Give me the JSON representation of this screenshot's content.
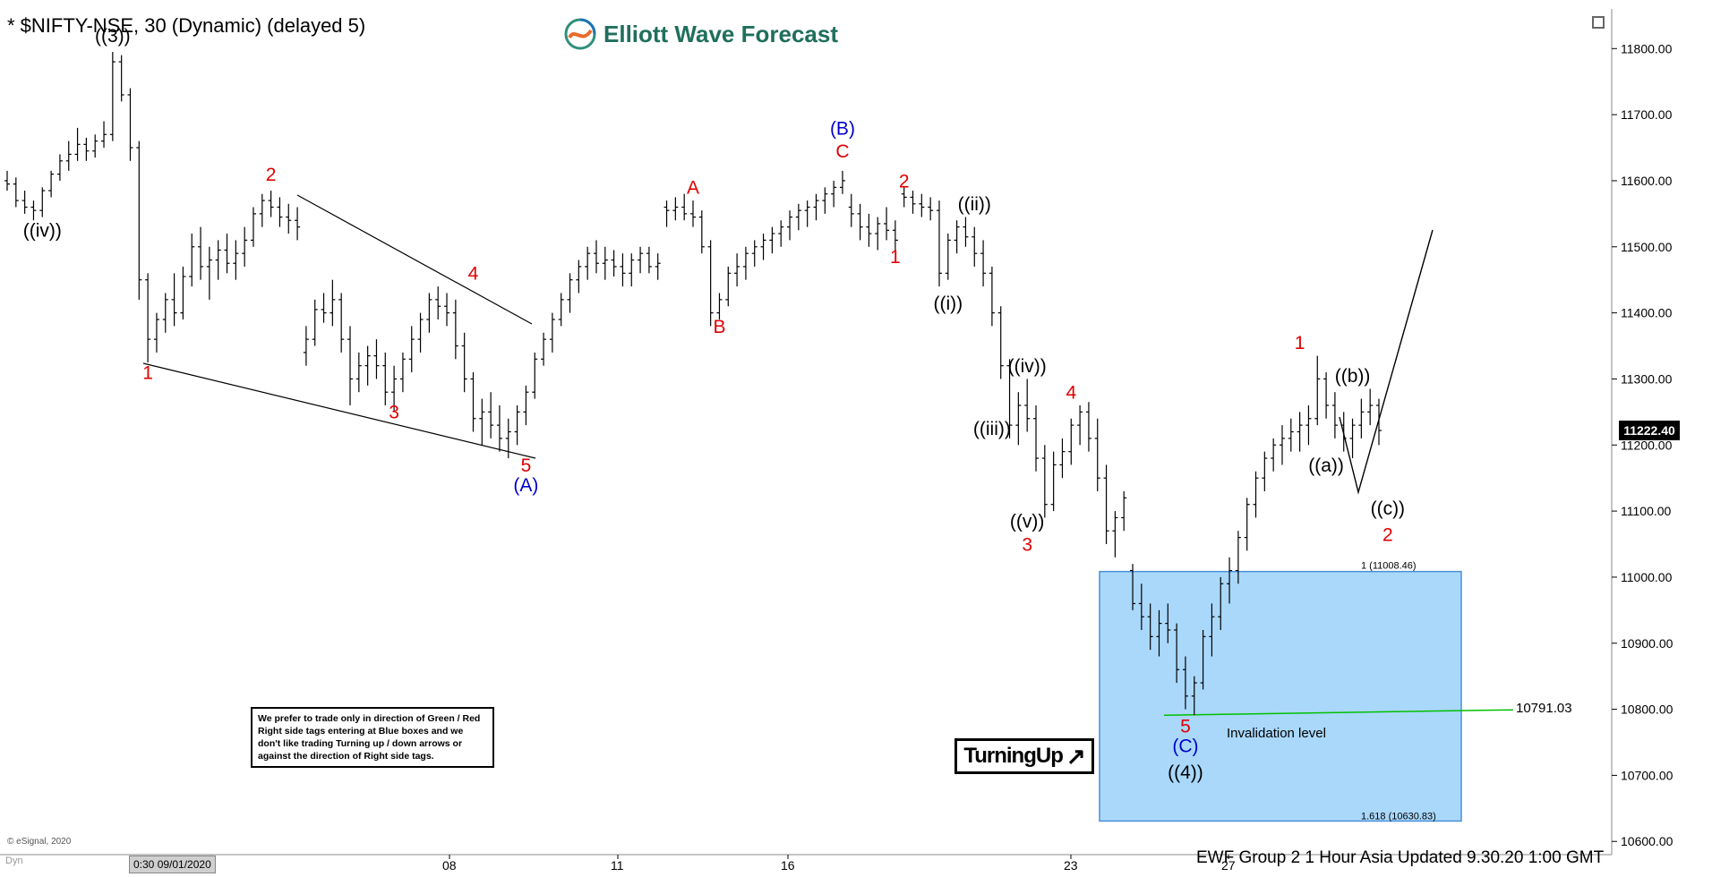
{
  "header": {
    "symbol_title": "* $NIFTY-NSE, 30 (Dynamic) (delayed 5)",
    "brand": "Elliott Wave Forecast"
  },
  "note_box": {
    "text": "We prefer to trade only in direction of Green / Red Right side tags entering at Blue boxes and we don't like trading Turning up / down arrows or against the direction of Right side tags."
  },
  "turning_up": {
    "label": "TurningUp",
    "icon": "up-right-arrow-icon"
  },
  "footer": {
    "text": "EWF Group 2   1 Hour Asia Updated 9.30.20 1:00 GMT",
    "copyright": "© eSignal, 2020",
    "dyn_label": "Dyn",
    "date_flag": "0:30 09/01/2020"
  },
  "chart_data": {
    "type": "ohlc",
    "ylim": [
      10580,
      11860
    ],
    "y_ticks": [
      "11800.00",
      "11700.00",
      "11600.00",
      "11500.00",
      "11400.00",
      "11300.00",
      "11200.00",
      "11100.00",
      "11000.00",
      "10900.00",
      "10800.00",
      "10700.00",
      "10600.00"
    ],
    "x_tick_labels": [
      "08",
      "11",
      "16",
      "23",
      "27"
    ],
    "last_price": "11222.40",
    "colors": {
      "bars": "#000000",
      "red_label": "#e00000",
      "blue_label": "#0000cc",
      "box_fill": "#a9d8fb",
      "box_stroke": "#4a90d9",
      "invalidation": "#00c000"
    },
    "blue_box": {
      "top_label": "1 (11008.46)",
      "bottom_label": "1.618 (10630.83)",
      "top": 11008.46,
      "bottom": 10630.83
    },
    "invalidation": {
      "value": 10791.03,
      "label": "10791.03",
      "text": "Invalidation level"
    },
    "wave_labels": [
      {
        "text": "((3))",
        "color": "black",
        "price": 11810,
        "bar": 12
      },
      {
        "text": "((iv))",
        "color": "black",
        "price": 11515,
        "bar": 4
      },
      {
        "text": "1",
        "color": "red",
        "price": 11300,
        "bar": 16
      },
      {
        "text": "2",
        "color": "red",
        "price": 11600,
        "bar": 30
      },
      {
        "text": "3",
        "color": "red",
        "price": 11240,
        "bar": 44
      },
      {
        "text": "4",
        "color": "red",
        "price": 11450,
        "bar": 53
      },
      {
        "text": "5",
        "color": "red",
        "price": 11160,
        "bar": 59
      },
      {
        "text": "(A)",
        "color": "blue",
        "price": 11130,
        "bar": 59
      },
      {
        "text": "A",
        "color": "red",
        "price": 11580,
        "bar": 78
      },
      {
        "text": "B",
        "color": "red",
        "price": 11370,
        "bar": 81
      },
      {
        "text": "(B)",
        "color": "blue",
        "price": 11670,
        "bar": 95
      },
      {
        "text": "C",
        "color": "red",
        "price": 11635,
        "bar": 95
      },
      {
        "text": "2",
        "color": "red",
        "price": 11590,
        "bar": 102
      },
      {
        "text": "1",
        "color": "red",
        "price": 11475,
        "bar": 101
      },
      {
        "text": "((ii))",
        "color": "black",
        "price": 11555,
        "bar": 110
      },
      {
        "text": "((i))",
        "color": "black",
        "price": 11405,
        "bar": 107
      },
      {
        "text": "((iv))",
        "color": "black",
        "price": 11310,
        "bar": 116
      },
      {
        "text": "((iii))",
        "color": "black",
        "price": 11215,
        "bar": 112
      },
      {
        "text": "4",
        "color": "red",
        "price": 11270,
        "bar": 121
      },
      {
        "text": "((v))",
        "color": "black",
        "price": 11075,
        "bar": 116
      },
      {
        "text": "3",
        "color": "red",
        "price": 11040,
        "bar": 116
      },
      {
        "text": "5",
        "color": "red",
        "price": 10765,
        "bar": 134
      },
      {
        "text": "(C)",
        "color": "blue",
        "price": 10735,
        "bar": 134
      },
      {
        "text": "((4))",
        "color": "black",
        "price": 10695,
        "bar": 134
      },
      {
        "text": "1",
        "color": "red",
        "price": 11345,
        "bar": 147
      },
      {
        "text": "((b))",
        "color": "black",
        "price": 11295,
        "bar": 153
      },
      {
        "text": "((a))",
        "color": "black",
        "price": 11160,
        "bar": 150
      },
      {
        "text": "((c))",
        "color": "black",
        "price": 11095,
        "bar": 157
      },
      {
        "text": "2",
        "color": "red",
        "price": 11055,
        "bar": 157
      }
    ],
    "ohlc": [
      [
        11600,
        11615,
        11585,
        11595
      ],
      [
        11595,
        11605,
        11560,
        11570
      ],
      [
        11570,
        11585,
        11550,
        11560
      ],
      [
        11560,
        11570,
        11540,
        11555
      ],
      [
        11555,
        11590,
        11545,
        11585
      ],
      [
        11585,
        11615,
        11575,
        11610
      ],
      [
        11610,
        11640,
        11600,
        11630
      ],
      [
        11630,
        11660,
        11615,
        11640
      ],
      [
        11640,
        11680,
        11630,
        11655
      ],
      [
        11655,
        11665,
        11630,
        11645
      ],
      [
        11645,
        11670,
        11635,
        11660
      ],
      [
        11660,
        11690,
        11650,
        11670
      ],
      [
        11670,
        11795,
        11660,
        11780
      ],
      [
        11780,
        11790,
        11720,
        11730
      ],
      [
        11730,
        11740,
        11630,
        11650
      ],
      [
        11650,
        11660,
        11420,
        11450
      ],
      [
        11450,
        11460,
        11325,
        11360
      ],
      [
        11360,
        11400,
        11340,
        11390
      ],
      [
        11390,
        11430,
        11370,
        11420
      ],
      [
        11420,
        11460,
        11380,
        11400
      ],
      [
        11400,
        11470,
        11390,
        11455
      ],
      [
        11455,
        11520,
        11440,
        11500
      ],
      [
        11500,
        11530,
        11450,
        11470
      ],
      [
        11470,
        11500,
        11420,
        11480
      ],
      [
        11480,
        11510,
        11450,
        11495
      ],
      [
        11495,
        11520,
        11460,
        11475
      ],
      [
        11475,
        11510,
        11450,
        11490
      ],
      [
        11490,
        11530,
        11470,
        11510
      ],
      [
        11510,
        11560,
        11500,
        11550
      ],
      [
        11550,
        11580,
        11530,
        11570
      ],
      [
        11570,
        11585,
        11545,
        11560
      ],
      [
        11560,
        11575,
        11530,
        11545
      ],
      [
        11545,
        11565,
        11520,
        11540
      ],
      [
        11540,
        11560,
        11510,
        11530
      ],
      [
        11340,
        11380,
        11320,
        11360
      ],
      [
        11360,
        11420,
        11350,
        11405
      ],
      [
        11405,
        11430,
        11385,
        11400
      ],
      [
        11400,
        11450,
        11380,
        11420
      ],
      [
        11420,
        11430,
        11340,
        11360
      ],
      [
        11360,
        11380,
        11260,
        11300
      ],
      [
        11300,
        11340,
        11280,
        11320
      ],
      [
        11320,
        11350,
        11290,
        11335
      ],
      [
        11335,
        11360,
        11300,
        11320
      ],
      [
        11320,
        11340,
        11260,
        11280
      ],
      [
        11280,
        11320,
        11250,
        11300
      ],
      [
        11300,
        11340,
        11280,
        11330
      ],
      [
        11330,
        11380,
        11310,
        11360
      ],
      [
        11360,
        11400,
        11340,
        11390
      ],
      [
        11390,
        11430,
        11370,
        11420
      ],
      [
        11420,
        11440,
        11390,
        11410
      ],
      [
        11410,
        11430,
        11380,
        11400
      ],
      [
        11400,
        11420,
        11330,
        11350
      ],
      [
        11350,
        11370,
        11280,
        11300
      ],
      [
        11300,
        11310,
        11220,
        11240
      ],
      [
        11240,
        11270,
        11200,
        11250
      ],
      [
        11250,
        11280,
        11210,
        11230
      ],
      [
        11230,
        11260,
        11190,
        11210
      ],
      [
        11210,
        11240,
        11180,
        11220
      ],
      [
        11220,
        11260,
        11200,
        11250
      ],
      [
        11250,
        11290,
        11230,
        11280
      ],
      [
        11280,
        11340,
        11270,
        11330
      ],
      [
        11330,
        11370,
        11320,
        11360
      ],
      [
        11360,
        11400,
        11340,
        11390
      ],
      [
        11390,
        11430,
        11380,
        11420
      ],
      [
        11420,
        11460,
        11400,
        11450
      ],
      [
        11450,
        11480,
        11430,
        11470
      ],
      [
        11470,
        11500,
        11450,
        11490
      ],
      [
        11490,
        11510,
        11460,
        11475
      ],
      [
        11475,
        11500,
        11450,
        11480
      ],
      [
        11480,
        11495,
        11455,
        11470
      ],
      [
        11470,
        11490,
        11440,
        11460
      ],
      [
        11460,
        11490,
        11440,
        11480
      ],
      [
        11480,
        11500,
        11460,
        11490
      ],
      [
        11490,
        11500,
        11460,
        11470
      ],
      [
        11470,
        11490,
        11450,
        11475
      ],
      [
        11560,
        11570,
        11530,
        11555
      ],
      [
        11555,
        11575,
        11540,
        11560
      ],
      [
        11560,
        11580,
        11540,
        11550
      ],
      [
        11550,
        11570,
        11530,
        11545
      ],
      [
        11545,
        11555,
        11490,
        11500
      ],
      [
        11500,
        11510,
        11380,
        11400
      ],
      [
        11400,
        11430,
        11390,
        11420
      ],
      [
        11420,
        11470,
        11410,
        11460
      ],
      [
        11460,
        11490,
        11440,
        11470
      ],
      [
        11470,
        11500,
        11450,
        11490
      ],
      [
        11490,
        11510,
        11470,
        11500
      ],
      [
        11500,
        11520,
        11480,
        11510
      ],
      [
        11510,
        11530,
        11490,
        11520
      ],
      [
        11520,
        11540,
        11500,
        11530
      ],
      [
        11530,
        11555,
        11510,
        11545
      ],
      [
        11545,
        11565,
        11525,
        11555
      ],
      [
        11555,
        11570,
        11530,
        11560
      ],
      [
        11560,
        11580,
        11540,
        11570
      ],
      [
        11570,
        11590,
        11550,
        11580
      ],
      [
        11580,
        11600,
        11560,
        11590
      ],
      [
        11590,
        11615,
        11580,
        11600
      ],
      [
        11560,
        11580,
        11530,
        11550
      ],
      [
        11550,
        11565,
        11510,
        11530
      ],
      [
        11530,
        11550,
        11500,
        11520
      ],
      [
        11520,
        11545,
        11495,
        11535
      ],
      [
        11535,
        11560,
        11510,
        11525
      ],
      [
        11525,
        11540,
        11495,
        11510
      ],
      [
        11580,
        11590,
        11560,
        11575
      ],
      [
        11575,
        11585,
        11550,
        11565
      ],
      [
        11565,
        11580,
        11545,
        11560
      ],
      [
        11560,
        11575,
        11540,
        11555
      ],
      [
        11555,
        11570,
        11440,
        11460
      ],
      [
        11460,
        11520,
        11450,
        11510
      ],
      [
        11510,
        11540,
        11490,
        11530
      ],
      [
        11530,
        11545,
        11500,
        11515
      ],
      [
        11515,
        11530,
        11470,
        11490
      ],
      [
        11490,
        11510,
        11440,
        11460
      ],
      [
        11460,
        11470,
        11380,
        11400
      ],
      [
        11400,
        11410,
        11300,
        11320
      ],
      [
        11320,
        11330,
        11210,
        11230
      ],
      [
        11230,
        11280,
        11200,
        11260
      ],
      [
        11260,
        11300,
        11220,
        11240
      ],
      [
        11240,
        11260,
        11160,
        11180
      ],
      [
        11180,
        11200,
        11090,
        11110
      ],
      [
        11110,
        11190,
        11100,
        11170
      ],
      [
        11170,
        11210,
        11150,
        11190
      ],
      [
        11190,
        11240,
        11170,
        11230
      ],
      [
        11230,
        11260,
        11200,
        11250
      ],
      [
        11250,
        11265,
        11190,
        11210
      ],
      [
        11210,
        11240,
        11130,
        11150
      ],
      [
        11150,
        11170,
        11050,
        11070
      ],
      [
        11070,
        11100,
        11030,
        11090
      ],
      [
        11090,
        11130,
        11070,
        11120
      ],
      [
        11010,
        11020,
        10950,
        10960
      ],
      [
        10960,
        10990,
        10920,
        10940
      ],
      [
        10940,
        10960,
        10890,
        10910
      ],
      [
        10910,
        10950,
        10880,
        10930
      ],
      [
        10930,
        10960,
        10900,
        10920
      ],
      [
        10920,
        10930,
        10840,
        10860
      ],
      [
        10860,
        10880,
        10800,
        10820
      ],
      [
        10820,
        10850,
        10791,
        10840
      ],
      [
        10840,
        10920,
        10830,
        10910
      ],
      [
        10910,
        10960,
        10880,
        10940
      ],
      [
        10940,
        11000,
        10920,
        10990
      ],
      [
        10990,
        11030,
        10960,
        11010
      ],
      [
        11010,
        11070,
        10990,
        11060
      ],
      [
        11060,
        11120,
        11040,
        11110
      ],
      [
        11110,
        11160,
        11090,
        11150
      ],
      [
        11150,
        11190,
        11130,
        11180
      ],
      [
        11180,
        11210,
        11160,
        11200
      ],
      [
        11200,
        11230,
        11170,
        11210
      ],
      [
        11210,
        11240,
        11190,
        11220
      ],
      [
        11220,
        11250,
        11190,
        11230
      ],
      [
        11230,
        11260,
        11200,
        11240
      ],
      [
        11240,
        11335,
        11230,
        11300
      ],
      [
        11300,
        11310,
        11240,
        11260
      ],
      [
        11260,
        11280,
        11210,
        11230
      ],
      [
        11230,
        11250,
        11190,
        11210
      ],
      [
        11210,
        11240,
        11180,
        11230
      ],
      [
        11230,
        11270,
        11210,
        11250
      ],
      [
        11250,
        11285,
        11230,
        11260
      ],
      [
        11260,
        11270,
        11200,
        11222
      ]
    ]
  }
}
